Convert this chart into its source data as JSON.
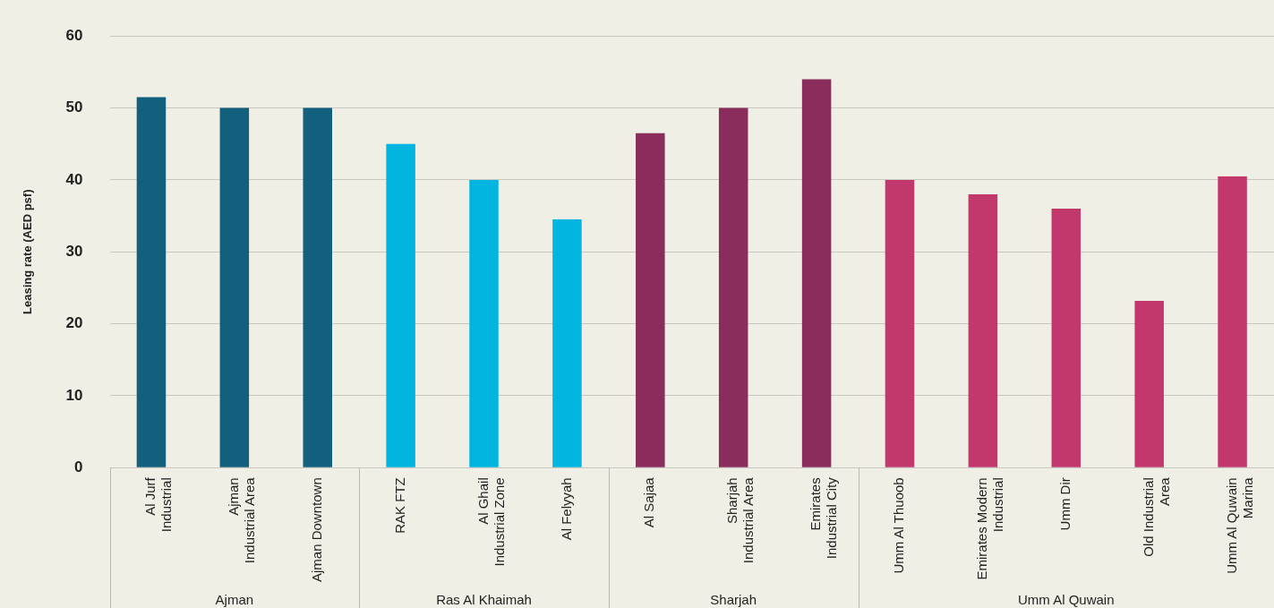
{
  "chart_data": {
    "type": "bar",
    "ylabel": "Leasing rate (AED psf)",
    "categories": [
      "Al Jurf Industrial",
      "Ajman Industrial Area",
      "Ajman Downtown",
      "RAK FTZ",
      "Al Ghail Industrial Zone",
      "Al Felyyah",
      "Al Sajaa",
      "Sharjah Industrial Area",
      "Emirates Industrial City",
      "Umm Al Thuoob",
      "Emirates Modern Industrial",
      "Umm Dir",
      "Old Industrial Area",
      "Umm Al Quwain Marina"
    ],
    "values": [
      51.5,
      50,
      50,
      45,
      40,
      34.5,
      46.5,
      50,
      54,
      40,
      38,
      36,
      23.2,
      40.5
    ],
    "colors": [
      "#135f7e",
      "#135f7e",
      "#135f7e",
      "#00b5e0",
      "#00b5e0",
      "#00b5e0",
      "#8a2d5c",
      "#8a2d5c",
      "#8a2d5c",
      "#c2386c",
      "#c2386c",
      "#c2386c",
      "#c2386c",
      "#c2386c"
    ],
    "annotations": [
      "Ajman",
      "Ras Al Khaimah",
      "Sharjah",
      "Umm Al Quwain"
    ],
    "ylim": [
      0,
      60
    ],
    "yticks": [
      0,
      10,
      20,
      30,
      40,
      50,
      60
    ],
    "grid": "y"
  }
}
